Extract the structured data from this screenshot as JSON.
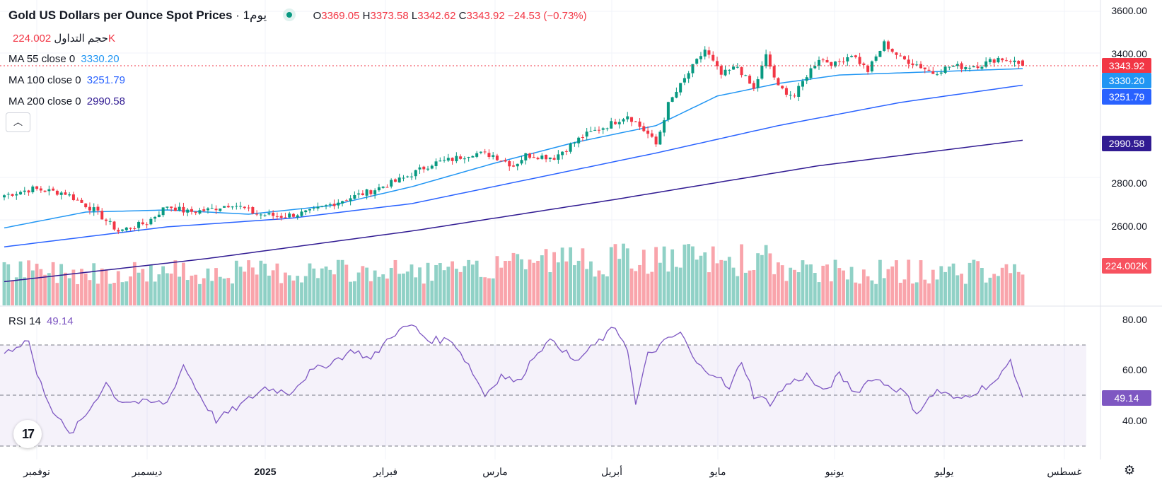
{
  "header": {
    "title": "Gold US Dollars per Ounce Spot Prices",
    "interval": "· 1يوم",
    "ohlc": {
      "o_label": "O",
      "o": "3369.05",
      "h_label": "H",
      "h": "3373.58",
      "l_label": "L",
      "l": "3342.62",
      "c_label": "C",
      "c": "3343.92",
      "change": "−24.53 (−0.73%)"
    }
  },
  "legend": {
    "volume_label": "حجم التداول",
    "volume_value": "224.002K",
    "ma55_label": "MA 55 close 0",
    "ma55_value": "3330.20",
    "ma100_label": "MA 100 close 0",
    "ma100_value": "3251.79",
    "ma200_label": "MA 200 close 0",
    "ma200_value": "2990.58",
    "rsi_label": "RSI 14",
    "rsi_value": "49.14",
    "collapse_icon": "chevron-up-icon"
  },
  "colors": {
    "up": "#089981",
    "down": "#f23645",
    "ma55": "#2196f3",
    "ma100": "#2962ff",
    "ma200": "#311b92",
    "rsi": "#7e57c2"
  },
  "chart_data": {
    "type": "candlestick",
    "x_axis_labels": [
      "نوفمبر",
      "ديسمبر",
      "2025",
      "فبراير",
      "مارس",
      "أبريل",
      "مايو",
      "يونيو",
      "يوليو",
      "غسطس"
    ],
    "price_axis_ticks": [
      "3600.00",
      "3400.00",
      "2800.00",
      "2600.00"
    ],
    "price_tags": {
      "last": "3343.92",
      "ma55": "3330.20",
      "ma100": "3251.79",
      "ma200": "2990.58",
      "volume": "224.002K"
    },
    "rsi_axis_ticks": [
      "80.00",
      "60.00",
      "40.00"
    ],
    "rsi_tag": "49.14",
    "ohlc_last": {
      "open": 3369.05,
      "high": 3373.58,
      "low": 3342.62,
      "close": 3343.92
    },
    "price_anchors": [
      [
        0,
        2730
      ],
      [
        7,
        2760
      ],
      [
        15,
        2740
      ],
      [
        22,
        2660
      ],
      [
        28,
        2560
      ],
      [
        35,
        2600
      ],
      [
        40,
        2680
      ],
      [
        45,
        2650
      ],
      [
        50,
        2660
      ],
      [
        56,
        2690
      ],
      [
        62,
        2640
      ],
      [
        68,
        2630
      ],
      [
        75,
        2650
      ],
      [
        82,
        2700
      ],
      [
        90,
        2750
      ],
      [
        98,
        2810
      ],
      [
        105,
        2880
      ],
      [
        110,
        2900
      ],
      [
        115,
        2930
      ],
      [
        120,
        2920
      ],
      [
        125,
        2870
      ],
      [
        128,
        2920
      ],
      [
        135,
        2910
      ],
      [
        142,
        3010
      ],
      [
        148,
        3060
      ],
      [
        153,
        3110
      ],
      [
        158,
        3020
      ],
      [
        160,
        2970
      ],
      [
        163,
        3160
      ],
      [
        168,
        3310
      ],
      [
        172,
        3420
      ],
      [
        176,
        3300
      ],
      [
        180,
        3340
      ],
      [
        184,
        3230
      ],
      [
        187,
        3390
      ],
      [
        190,
        3240
      ],
      [
        194,
        3200
      ],
      [
        197,
        3300
      ],
      [
        200,
        3380
      ],
      [
        204,
        3350
      ],
      [
        208,
        3400
      ],
      [
        212,
        3320
      ],
      [
        216,
        3450
      ],
      [
        220,
        3380
      ],
      [
        224,
        3350
      ],
      [
        228,
        3310
      ],
      [
        232,
        3340
      ],
      [
        236,
        3340
      ],
      [
        240,
        3350
      ],
      [
        244,
        3380
      ],
      [
        247,
        3370
      ],
      [
        250,
        3343.92
      ]
    ],
    "rsi_anchors": [
      [
        0,
        67
      ],
      [
        6,
        72
      ],
      [
        8,
        58
      ],
      [
        12,
        44
      ],
      [
        16,
        34
      ],
      [
        20,
        42
      ],
      [
        25,
        55
      ],
      [
        28,
        48
      ],
      [
        34,
        47
      ],
      [
        40,
        47
      ],
      [
        44,
        62
      ],
      [
        48,
        50
      ],
      [
        52,
        40
      ],
      [
        58,
        46
      ],
      [
        64,
        53
      ],
      [
        70,
        51
      ],
      [
        75,
        59
      ],
      [
        80,
        63
      ],
      [
        86,
        68
      ],
      [
        90,
        64
      ],
      [
        95,
        74
      ],
      [
        100,
        78
      ],
      [
        104,
        72
      ],
      [
        110,
        72
      ],
      [
        114,
        62
      ],
      [
        118,
        50
      ],
      [
        122,
        58
      ],
      [
        126,
        55
      ],
      [
        131,
        68
      ],
      [
        135,
        72
      ],
      [
        140,
        63
      ],
      [
        145,
        70
      ],
      [
        150,
        77
      ],
      [
        153,
        69
      ],
      [
        155,
        46
      ],
      [
        158,
        66
      ],
      [
        162,
        71
      ],
      [
        166,
        75
      ],
      [
        170,
        62
      ],
      [
        175,
        58
      ],
      [
        178,
        52
      ],
      [
        181,
        64
      ],
      [
        184,
        50
      ],
      [
        188,
        47
      ],
      [
        192,
        54
      ],
      [
        197,
        58
      ],
      [
        201,
        51
      ],
      [
        205,
        58
      ],
      [
        209,
        51
      ],
      [
        213,
        57
      ],
      [
        217,
        54
      ],
      [
        221,
        51
      ],
      [
        224,
        43
      ],
      [
        229,
        52
      ],
      [
        234,
        48
      ],
      [
        239,
        52
      ],
      [
        244,
        56
      ],
      [
        247,
        64
      ],
      [
        250,
        49.14
      ]
    ],
    "ma_anchors": {
      "ma55": [
        [
          0,
          2575
        ],
        [
          20,
          2650
        ],
        [
          40,
          2660
        ],
        [
          60,
          2640
        ],
        [
          80,
          2680
        ],
        [
          100,
          2770
        ],
        [
          120,
          2880
        ],
        [
          140,
          2980
        ],
        [
          160,
          3060
        ],
        [
          175,
          3200
        ],
        [
          190,
          3260
        ],
        [
          205,
          3300
        ],
        [
          220,
          3310
        ],
        [
          235,
          3320
        ],
        [
          250,
          3330.2
        ]
      ],
      "ma100": [
        [
          0,
          2485
        ],
        [
          40,
          2580
        ],
        [
          70,
          2620
        ],
        [
          100,
          2690
        ],
        [
          130,
          2810
        ],
        [
          160,
          2930
        ],
        [
          190,
          3060
        ],
        [
          220,
          3170
        ],
        [
          250,
          3251.79
        ]
      ],
      "ma200": [
        [
          0,
          2320
        ],
        [
          50,
          2430
        ],
        [
          100,
          2560
        ],
        [
          150,
          2710
        ],
        [
          200,
          2870
        ],
        [
          250,
          2990.58
        ]
      ]
    }
  }
}
